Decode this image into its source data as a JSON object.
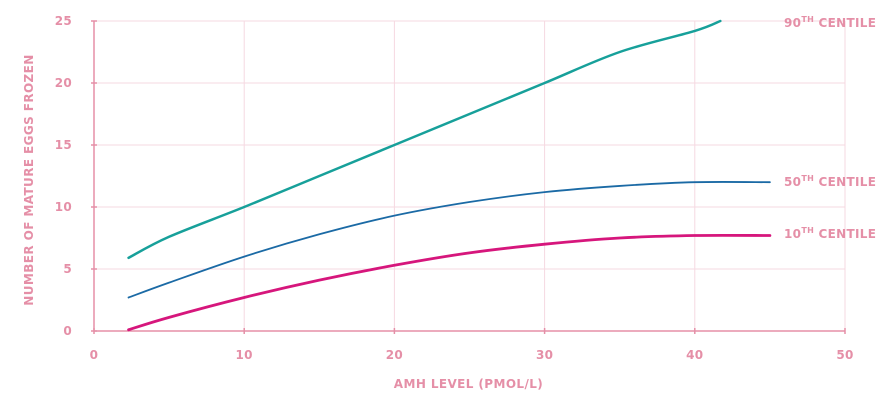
{
  "colors": {
    "axis": "#e58fa7",
    "grid": "#f6d9e1",
    "text": "#e58fa7"
  },
  "chart_data": {
    "type": "line",
    "title": "",
    "xlabel": "AMH LEVEL (PMOL/L)",
    "ylabel": "NUMBER OF MATURE EGGS FROZEN",
    "xlim": [
      0,
      50
    ],
    "ylim": [
      0,
      25
    ],
    "xticks": [
      "0",
      "10",
      "20",
      "30",
      "40",
      "50"
    ],
    "yticks": [
      "0",
      "5",
      "10",
      "15",
      "20",
      "25"
    ],
    "grid": true,
    "series": [
      {
        "name": "90TH CENTILE",
        "label_main": "90",
        "label_sup": "TH",
        "label_rest": " CENTILE",
        "color": "#17a09a",
        "x": [
          2.3,
          5,
          10,
          15,
          20,
          25,
          30,
          35,
          40,
          41.7
        ],
        "y": [
          5.9,
          7.6,
          10.0,
          12.5,
          15.0,
          17.5,
          20.0,
          22.5,
          24.2,
          25.0
        ]
      },
      {
        "name": "50TH CENTILE",
        "label_main": "50",
        "label_sup": "TH",
        "label_rest": " CENTILE",
        "color": "#1b6aa5",
        "x": [
          2.3,
          5,
          10,
          15,
          20,
          25,
          30,
          35,
          40,
          45
        ],
        "y": [
          2.7,
          3.9,
          6.0,
          7.8,
          9.3,
          10.4,
          11.2,
          11.7,
          12.0,
          12.0
        ]
      },
      {
        "name": "10TH CENTILE",
        "label_main": "10",
        "label_sup": "TH",
        "label_rest": " CENTILE",
        "color": "#d6167c",
        "x": [
          2.3,
          5,
          10,
          15,
          20,
          25,
          30,
          35,
          40,
          45
        ],
        "y": [
          0.1,
          1.1,
          2.7,
          4.1,
          5.3,
          6.3,
          7.0,
          7.5,
          7.7,
          7.7
        ]
      }
    ]
  }
}
